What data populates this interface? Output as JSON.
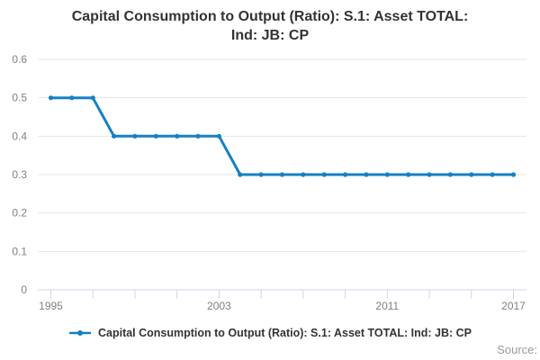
{
  "title": {
    "line1": "Capital Consumption to Output (Ratio): S.1: Asset TOTAL:",
    "line2": "Ind: JB: CP"
  },
  "legend": {
    "label": "Capital Consumption to Output (Ratio): S.1: Asset TOTAL: Ind: JB: CP"
  },
  "source_label": "Source:",
  "colors": {
    "series": "#1580c4",
    "grid": "#e6e6e6",
    "axis": "#ccd6eb",
    "tick_label": "#808080",
    "title_text": "#333333",
    "legend_text": "#333333",
    "source_text": "#9a9a9a"
  },
  "chart_data": {
    "type": "line",
    "title": "Capital Consumption to Output (Ratio): S.1: Asset TOTAL: Ind: JB: CP",
    "xlabel": "",
    "ylabel": "",
    "grid": true,
    "legend_position": "bottom",
    "x": [
      1995,
      1996,
      1997,
      1998,
      1999,
      2000,
      2001,
      2002,
      2003,
      2004,
      2005,
      2006,
      2007,
      2008,
      2009,
      2010,
      2011,
      2012,
      2013,
      2014,
      2015,
      2016,
      2017
    ],
    "series": [
      {
        "name": "Capital Consumption to Output (Ratio): S.1: Asset TOTAL: Ind: JB: CP",
        "color": "#1580c4",
        "values": [
          0.5,
          0.5,
          0.5,
          0.4,
          0.4,
          0.4,
          0.4,
          0.4,
          0.4,
          0.3,
          0.3,
          0.3,
          0.3,
          0.3,
          0.3,
          0.3,
          0.3,
          0.3,
          0.3,
          0.3,
          0.3,
          0.3,
          0.3
        ]
      }
    ],
    "ylim": [
      0,
      0.6
    ],
    "y_ticks": [
      0,
      0.1,
      0.2,
      0.3,
      0.4,
      0.5,
      0.6
    ],
    "y_tick_labels": [
      "0",
      "0.1",
      "0.2",
      "0.3",
      "0.4",
      "0.5",
      "0.6"
    ],
    "x_tick_marks": [
      1995,
      1997,
      1999,
      2001,
      2003,
      2005,
      2007,
      2009,
      2011,
      2013,
      2015,
      2017
    ],
    "x_labeled_ticks": [
      1995,
      2003,
      2011,
      2017
    ],
    "x_tick_labels": [
      "1995",
      "2003",
      "2011",
      "2017"
    ]
  }
}
